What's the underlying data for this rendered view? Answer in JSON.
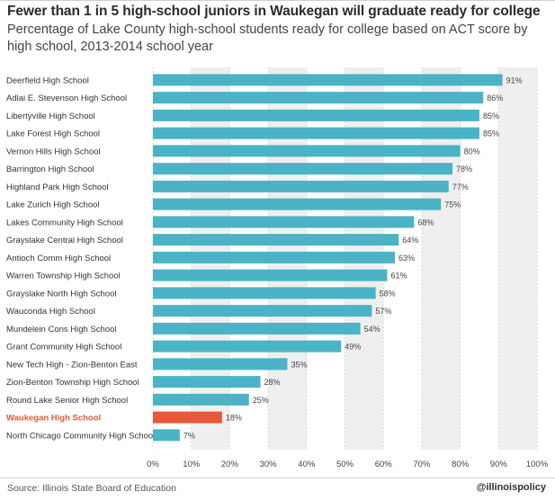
{
  "header": {
    "title": "Fewer than 1 in 5 high-school juniors in Waukegan will graduate ready for college",
    "subtitle": "Percentage of Lake County high-school students ready for college based on ACT score by high school, 2013-2014 school year"
  },
  "footer": {
    "source": "Source: Illinois State Board of Education",
    "handle": "@illinoispolicy"
  },
  "colors": {
    "bar": "#4ab3c5",
    "highlight": "#e8583a",
    "band": "#efefef",
    "grid": "#d9d9d9"
  },
  "chart_data": {
    "type": "bar",
    "orientation": "horizontal",
    "value_format": "{v}%",
    "xlim": [
      0,
      100
    ],
    "xticks": [
      0,
      10,
      20,
      30,
      40,
      50,
      60,
      70,
      80,
      90,
      100
    ],
    "xtick_labels": [
      "0%",
      "10%",
      "20%",
      "30%",
      "40%",
      "50%",
      "60%",
      "70%",
      "80%",
      "90%",
      "100%"
    ],
    "grid": true,
    "highlight_category": "Waukegan High School",
    "categories": [
      "Deerfield High School",
      "Adlai E. Stevenson High School",
      "Libertyville High School",
      "Lake Forest High School",
      "Vernon Hills High School",
      "Barrington High School",
      "Highland Park High School",
      "Lake Zurich High School",
      "Lakes Community High School",
      "Grayslake Central High School",
      "Antioch Comm High School",
      "Warren Township High School",
      "Grayslake North High School",
      "Wauconda High School",
      "Mundelein Cons High School",
      "Grant Community High School",
      "New Tech High - Zion-Benton East",
      "Zion-Benton Township High School",
      "Round Lake Senior High School",
      "Waukegan High School",
      "North Chicago Community High School"
    ],
    "values": [
      91,
      86,
      85,
      85,
      80,
      78,
      77,
      75,
      68,
      64,
      63,
      61,
      58,
      57,
      54,
      49,
      35,
      28,
      25,
      18,
      7
    ]
  }
}
